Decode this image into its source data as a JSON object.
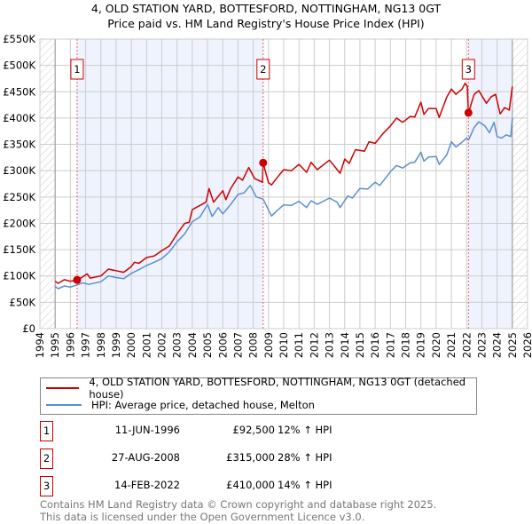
{
  "chart_data": {
    "type": "line",
    "title": "4, OLD STATION YARD, BOTTESFORD, NOTTINGHAM, NG13 0GT",
    "subtitle": "Price paid vs. HM Land Registry's House Price Index (HPI)",
    "xlim": [
      1994,
      2026
    ],
    "ylim": [
      0,
      550000
    ],
    "x_ticks": [
      "1994",
      "1995",
      "1996",
      "1997",
      "1998",
      "1999",
      "2000",
      "2001",
      "2002",
      "2003",
      "2004",
      "2005",
      "2006",
      "2007",
      "2008",
      "2009",
      "2010",
      "2011",
      "2012",
      "2013",
      "2014",
      "2015",
      "2016",
      "2017",
      "2018",
      "2019",
      "2020",
      "2021",
      "2022",
      "2023",
      "2024",
      "2025",
      "2026"
    ],
    "y_ticks": [
      {
        "v": 0,
        "label": "£0"
      },
      {
        "v": 50000,
        "label": "£50K"
      },
      {
        "v": 100000,
        "label": "£100K"
      },
      {
        "v": 150000,
        "label": "£150K"
      },
      {
        "v": 200000,
        "label": "£200K"
      },
      {
        "v": 250000,
        "label": "£250K"
      },
      {
        "v": 300000,
        "label": "£300K"
      },
      {
        "v": 350000,
        "label": "£350K"
      },
      {
        "v": 400000,
        "label": "£400K"
      },
      {
        "v": 450000,
        "label": "£450K"
      },
      {
        "v": 500000,
        "label": "£500K"
      },
      {
        "v": 550000,
        "label": "£550K"
      }
    ],
    "grid": true,
    "data_range": [
      1995,
      2025
    ],
    "shaded": [
      [
        1996.44,
        2008.65
      ],
      [
        2022.12,
        2025
      ]
    ],
    "series": [
      {
        "name": "4, OLD STATION YARD, BOTTESFORD, NOTTINGHAM, NG13 0GT (detached house)",
        "color": "#cc0000",
        "points": [
          [
            1995,
            90
          ],
          [
            1995.2,
            86
          ],
          [
            1995.6,
            93
          ],
          [
            1996,
            90
          ],
          [
            1996.44,
            92.5
          ],
          [
            1996.8,
            98
          ],
          [
            1997.1,
            104
          ],
          [
            1997.3,
            96
          ],
          [
            1998,
            100
          ],
          [
            1998.5,
            113
          ],
          [
            1999,
            110
          ],
          [
            1999.5,
            107
          ],
          [
            2000,
            118
          ],
          [
            2000.2,
            126
          ],
          [
            2000.5,
            124
          ],
          [
            2001,
            135
          ],
          [
            2001.5,
            138
          ],
          [
            2002,
            148
          ],
          [
            2002.5,
            157
          ],
          [
            2003,
            180
          ],
          [
            2003.5,
            200
          ],
          [
            2003.8,
            202
          ],
          [
            2004,
            226
          ],
          [
            2004.5,
            234
          ],
          [
            2004.9,
            240
          ],
          [
            2005.1,
            266
          ],
          [
            2005.4,
            240
          ],
          [
            2006,
            262
          ],
          [
            2006.2,
            245
          ],
          [
            2006.5,
            265
          ],
          [
            2007,
            288
          ],
          [
            2007.3,
            282
          ],
          [
            2007.7,
            306
          ],
          [
            2008.1,
            285
          ],
          [
            2008.6,
            278
          ],
          [
            2008.65,
            315
          ],
          [
            2009,
            277
          ],
          [
            2009.2,
            273
          ],
          [
            2009.6,
            288
          ],
          [
            2010,
            302
          ],
          [
            2010.5,
            300
          ],
          [
            2011,
            312
          ],
          [
            2011.5,
            297
          ],
          [
            2011.8,
            316
          ],
          [
            2012.2,
            302
          ],
          [
            2013,
            320
          ],
          [
            2013.7,
            295
          ],
          [
            2014,
            322
          ],
          [
            2014.3,
            314
          ],
          [
            2014.7,
            340
          ],
          [
            2015.3,
            337
          ],
          [
            2015.6,
            355
          ],
          [
            2016,
            352
          ],
          [
            2016.5,
            370
          ],
          [
            2017,
            385
          ],
          [
            2017.4,
            400
          ],
          [
            2017.8,
            392
          ],
          [
            2018.3,
            403
          ],
          [
            2018.6,
            402
          ],
          [
            2019,
            430
          ],
          [
            2019.2,
            407
          ],
          [
            2019.5,
            418
          ],
          [
            2020,
            418
          ],
          [
            2020.2,
            401
          ],
          [
            2020.7,
            440
          ],
          [
            2021,
            455
          ],
          [
            2021.3,
            445
          ],
          [
            2021.7,
            455
          ],
          [
            2021.9,
            466
          ],
          [
            2022.05,
            460
          ],
          [
            2022.12,
            410
          ],
          [
            2022.5,
            445
          ],
          [
            2022.8,
            452
          ],
          [
            2023.3,
            428
          ],
          [
            2023.6,
            440
          ],
          [
            2023.9,
            445
          ],
          [
            2024.2,
            408
          ],
          [
            2024.5,
            420
          ],
          [
            2024.8,
            415
          ],
          [
            2025,
            460
          ]
        ]
      },
      {
        "name": "HPI: Average price, detached house, Melton",
        "color": "#5b8fd0",
        "points": [
          [
            1995,
            80
          ],
          [
            1995.2,
            76
          ],
          [
            1995.6,
            81
          ],
          [
            1996,
            79
          ],
          [
            1996.44,
            83
          ],
          [
            1996.8,
            87
          ],
          [
            1997.2,
            84
          ],
          [
            1998,
            89
          ],
          [
            1998.5,
            100
          ],
          [
            1999,
            97
          ],
          [
            1999.5,
            95
          ],
          [
            2000,
            105
          ],
          [
            2000.5,
            112
          ],
          [
            2001,
            120
          ],
          [
            2001.5,
            126
          ],
          [
            2002,
            133
          ],
          [
            2002.5,
            146
          ],
          [
            2003,
            165
          ],
          [
            2003.5,
            180
          ],
          [
            2004,
            203
          ],
          [
            2004.5,
            212
          ],
          [
            2005,
            236
          ],
          [
            2005.3,
            213
          ],
          [
            2005.7,
            230
          ],
          [
            2006,
            218
          ],
          [
            2006.5,
            235
          ],
          [
            2007,
            255
          ],
          [
            2007.4,
            258
          ],
          [
            2007.8,
            272
          ],
          [
            2008.2,
            250
          ],
          [
            2008.65,
            246
          ],
          [
            2009,
            225
          ],
          [
            2009.2,
            214
          ],
          [
            2009.6,
            225
          ],
          [
            2010,
            235
          ],
          [
            2010.5,
            234
          ],
          [
            2011,
            242
          ],
          [
            2011.5,
            230
          ],
          [
            2011.8,
            243
          ],
          [
            2012.2,
            236
          ],
          [
            2013,
            248
          ],
          [
            2013.5,
            240
          ],
          [
            2013.7,
            230
          ],
          [
            2014.2,
            252
          ],
          [
            2014.5,
            248
          ],
          [
            2015,
            266
          ],
          [
            2015.5,
            265
          ],
          [
            2016,
            278
          ],
          [
            2016.3,
            272
          ],
          [
            2017,
            298
          ],
          [
            2017.4,
            310
          ],
          [
            2017.8,
            305
          ],
          [
            2018.3,
            315
          ],
          [
            2018.6,
            316
          ],
          [
            2019,
            335
          ],
          [
            2019.2,
            318
          ],
          [
            2019.5,
            326
          ],
          [
            2020,
            327
          ],
          [
            2020.2,
            312
          ],
          [
            2020.7,
            330
          ],
          [
            2021,
            355
          ],
          [
            2021.3,
            345
          ],
          [
            2021.6,
            352
          ],
          [
            2022,
            362
          ],
          [
            2022.12,
            358
          ],
          [
            2022.5,
            382
          ],
          [
            2022.8,
            393
          ],
          [
            2023.2,
            385
          ],
          [
            2023.5,
            372
          ],
          [
            2023.8,
            392
          ],
          [
            2024,
            365
          ],
          [
            2024.3,
            362
          ],
          [
            2024.6,
            368
          ],
          [
            2024.9,
            365
          ],
          [
            2025,
            400
          ]
        ]
      }
    ],
    "sales": [
      {
        "id": "1",
        "year": 1996.44,
        "price": 92500
      },
      {
        "id": "2",
        "year": 2008.65,
        "price": 315000
      },
      {
        "id": "3",
        "year": 2022.12,
        "price": 410000
      }
    ]
  },
  "legend": {
    "property": "4, OLD STATION YARD, BOTTESFORD, NOTTINGHAM, NG13 0GT (detached house)",
    "hpi": "HPI: Average price, detached house, Melton"
  },
  "transactions": [
    {
      "id": "1",
      "date": "11-JUN-1996",
      "price": "£92,500",
      "hpi": "12% ↑ HPI"
    },
    {
      "id": "2",
      "date": "27-AUG-2008",
      "price": "£315,000",
      "hpi": "28% ↑ HPI"
    },
    {
      "id": "3",
      "date": "14-FEB-2022",
      "price": "£410,000",
      "hpi": "14% ↑ HPI"
    }
  ],
  "footer": {
    "line1": "Contains HM Land Registry data © Crown copyright and database right 2025.",
    "line2": "This data is licensed under the Open Government Licence v3.0."
  }
}
